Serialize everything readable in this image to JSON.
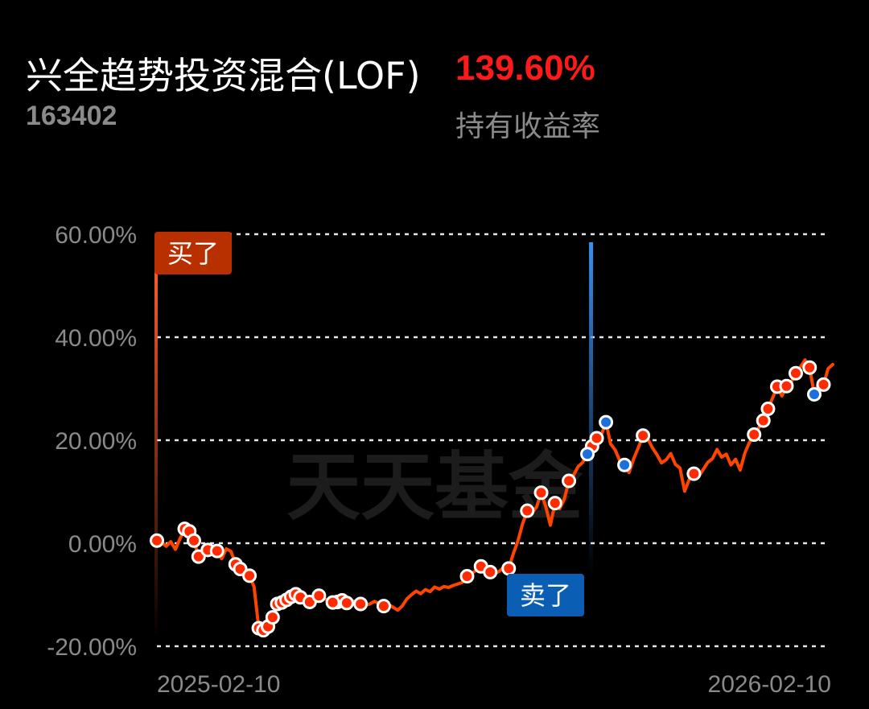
{
  "fund": {
    "name": "兴全趋势投资混合(LOF)",
    "code": "163402",
    "return_value": "139.60%",
    "return_label": "持有收益率"
  },
  "watermark": "天天基金",
  "buy_tag": "买了",
  "sell_tag": "卖了",
  "colors": {
    "line": "#ff4400",
    "buy_marker": "#ff2a00",
    "sell_marker": "#1e6fdc",
    "buy_tag_bg": "#b83000",
    "sell_tag_bg": "#0a5fb4",
    "return": "#ff1a1a"
  },
  "chart_data": {
    "type": "line",
    "x_labels": [
      "2025-02-10",
      "2026-02-10"
    ],
    "y_ticks": [
      {
        "value": 60,
        "label": "60.00%"
      },
      {
        "value": 40,
        "label": "40.00%"
      },
      {
        "value": 20,
        "label": "20.00%"
      },
      {
        "value": 0,
        "label": "0.00%"
      },
      {
        "value": -20,
        "label": "-20.00%"
      }
    ],
    "ylim": [
      -20,
      60
    ],
    "grid": true,
    "series": [
      {
        "values": [
          0.5,
          0.2,
          -0.6,
          0.3,
          -1.2,
          0.9,
          2.8,
          2.3,
          0.5,
          -2.6,
          -2.2,
          -1.3,
          -2.1,
          -1.5,
          -3.0,
          -1.1,
          -1.6,
          -4.1,
          -5.0,
          -5.8,
          -6.3,
          -8.5,
          -16.5,
          -16.9,
          -16.2,
          -14.4,
          -11.8,
          -11.5,
          -11.0,
          -10.4,
          -9.9,
          -10.5,
          -10.3,
          -11.4,
          -11.0,
          -10.2,
          -10.6,
          -11.2,
          -11.5,
          -11.4,
          -11.1,
          -11.6,
          -11.2,
          -11.3,
          -11.8,
          -12.0,
          -11.8,
          -11.3,
          -11.7,
          -12.2,
          -11.9,
          -12.4,
          -13.0,
          -12.2,
          -10.8,
          -10.0,
          -9.3,
          -9.8,
          -9.0,
          -9.4,
          -8.5,
          -8.9,
          -8.4,
          -8.6,
          -8.2,
          -7.9,
          -7.6,
          -6.4,
          -5.9,
          -5.2,
          -4.5,
          -5.1,
          -5.6,
          -5.9,
          -5.4,
          -4.6,
          -4.9,
          -2.0,
          0.5,
          3.8,
          6.3,
          5.9,
          7.0,
          9.8,
          7.1,
          3.5,
          7.8,
          6.7,
          8.6,
          12.1,
          13.2,
          14.9,
          15.7,
          17.3,
          18.8,
          20.4,
          21.0,
          23.5,
          19.3,
          18.1,
          16.0,
          15.2,
          13.7,
          16.4,
          18.6,
          20.9,
          20.3,
          18.6,
          17.2,
          15.6,
          16.2,
          17.4,
          15.3,
          14.6,
          10.1,
          12.4,
          13.5,
          12.9,
          14.3,
          15.7,
          16.4,
          18.2,
          16.7,
          17.3,
          15.2,
          16.3,
          14.2,
          17.5,
          19.6,
          21.1,
          22.4,
          23.8,
          26.1,
          28.2,
          30.4,
          28.6,
          30.5,
          31.2,
          33.0,
          34.2,
          35.6,
          34.1,
          28.9,
          31.2,
          30.8,
          33.9,
          34.7
        ]
      }
    ],
    "buy_points": [
      0.5,
      2.8,
      2.3,
      -2.6,
      -1.3,
      -1.5,
      -4.1,
      -5.0,
      -6.3,
      -16.5,
      -16.9,
      -16.2,
      -14.4,
      -11.8,
      -11.5,
      -11.0,
      -10.4,
      -9.9,
      -10.5,
      -11.4,
      -10.2,
      -11.4,
      -11.1,
      -11.6,
      -11.8,
      -11.5,
      -12.2,
      -6.4,
      -4.5,
      -5.6,
      -4.9,
      0.5,
      6.3,
      9.8,
      7.8,
      12.1,
      18.8,
      20.4,
      20.9,
      13.5,
      21.1,
      23.8,
      26.1,
      30.4,
      30.5,
      33.0,
      34.1,
      30.8
    ],
    "sell_points": [
      17.3,
      23.5,
      15.2,
      28.9
    ],
    "buy_marker_at": "2025-02-10",
    "sell_marker_value": 17.3
  }
}
